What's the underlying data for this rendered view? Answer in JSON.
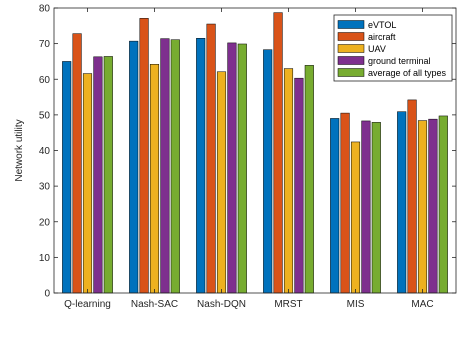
{
  "chart_data": {
    "type": "bar",
    "ylabel": "Network utility",
    "ylim": [
      0,
      80
    ],
    "yticks": [
      0,
      10,
      20,
      30,
      40,
      50,
      60,
      70,
      80
    ],
    "grid": false,
    "legend_position": "top-right",
    "categories": [
      "Q-learning",
      "Nash-SAC",
      "Nash-DQN",
      "MRST",
      "MIS",
      "MAC"
    ],
    "series": [
      {
        "name": "eVTOL",
        "color": "#0072BD",
        "values": [
          65.0,
          70.7,
          71.5,
          68.3,
          49.0,
          50.9
        ]
      },
      {
        "name": "aircraft",
        "color": "#D95319",
        "values": [
          72.8,
          77.1,
          75.5,
          78.7,
          50.5,
          54.2
        ]
      },
      {
        "name": "UAV",
        "color": "#EDB120",
        "values": [
          61.6,
          64.2,
          62.1,
          63.0,
          42.4,
          48.4
        ]
      },
      {
        "name": "ground terminal",
        "color": "#7E2F8E",
        "values": [
          66.3,
          71.4,
          70.2,
          60.3,
          48.3,
          48.8
        ]
      },
      {
        "name": "average of all types",
        "color": "#77AC30",
        "values": [
          66.4,
          71.1,
          69.9,
          63.9,
          47.9,
          49.7
        ]
      }
    ]
  }
}
